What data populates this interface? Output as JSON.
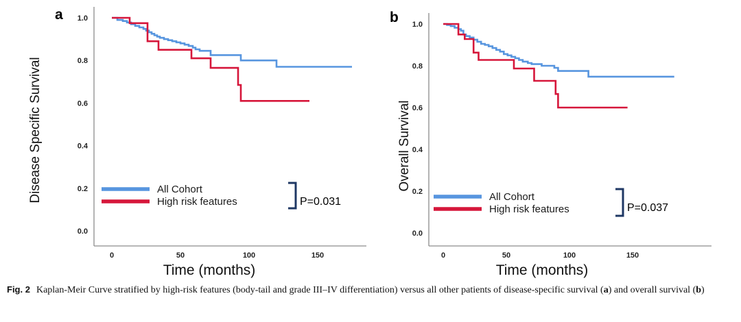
{
  "figure": {
    "caption": {
      "label": "Fig. 2",
      "text_1": "Kaplan-Meir Curve stratified by high-risk features (body-tail and grade III–IV differentiation) versus all other patients of disease-specific survival (",
      "bold_a": "a",
      "text_2": ") and overall survival (",
      "bold_b": "b",
      "text_3": ")"
    }
  },
  "colors": {
    "all_cohort": "#5795DF",
    "high_risk": "#D6163A",
    "bracket": "#1F3864",
    "axis": "#8C8C8C"
  },
  "chart_data": [
    {
      "type": "line",
      "subtype": "kaplan-meier-step",
      "panel_label": "a",
      "xlabel": "Time (months)",
      "ylabel": "Disease Specific Survival",
      "xlim": [
        0,
        185
      ],
      "ylim": [
        0.0,
        1.05
      ],
      "x_ticks": [
        0,
        50,
        100,
        150
      ],
      "y_ticks": [
        "1.0",
        "0.8",
        "0.6",
        "0.4",
        "0.2",
        "0.0"
      ],
      "grid": false,
      "legend_position": "lower-left-inside",
      "p_value": "P=0.031",
      "legend": [
        {
          "key": "all-cohort",
          "name": "All Cohort",
          "color_key": "all_cohort"
        },
        {
          "key": "high-risk",
          "name": "High risk features",
          "color_key": "high_risk"
        }
      ],
      "series": [
        {
          "key": "all-cohort",
          "name": "All Cohort",
          "color_key": "all_cohort",
          "points": [
            [
              0,
              1.0
            ],
            [
              4,
              0.99
            ],
            [
              8,
              0.985
            ],
            [
              11,
              0.978
            ],
            [
              14,
              0.97
            ],
            [
              17,
              0.962
            ],
            [
              20,
              0.955
            ],
            [
              23,
              0.948
            ],
            [
              25,
              0.94
            ],
            [
              27,
              0.932
            ],
            [
              29,
              0.925
            ],
            [
              31,
              0.918
            ],
            [
              33,
              0.912
            ],
            [
              35,
              0.906
            ],
            [
              38,
              0.9
            ],
            [
              41,
              0.895
            ],
            [
              44,
              0.89
            ],
            [
              47,
              0.885
            ],
            [
              50,
              0.88
            ],
            [
              53,
              0.874
            ],
            [
              56,
              0.868
            ],
            [
              59,
              0.86
            ],
            [
              61,
              0.852
            ],
            [
              64,
              0.845
            ],
            [
              72,
              0.825
            ],
            [
              94,
              0.8
            ],
            [
              120,
              0.77
            ],
            [
              175,
              0.77
            ]
          ]
        },
        {
          "key": "high-risk",
          "name": "High risk features",
          "color_key": "high_risk",
          "points": [
            [
              0,
              1.0
            ],
            [
              13,
              0.975
            ],
            [
              26,
              0.89
            ],
            [
              34,
              0.85
            ],
            [
              58,
              0.81
            ],
            [
              72,
              0.765
            ],
            [
              92,
              0.685
            ],
            [
              94,
              0.61
            ],
            [
              144,
              0.61
            ]
          ]
        }
      ]
    },
    {
      "type": "line",
      "subtype": "kaplan-meier-step",
      "panel_label": "b",
      "xlabel": "Time (months)",
      "ylabel": "Overall Survival",
      "xlim": [
        0,
        190
      ],
      "ylim": [
        0.0,
        1.05
      ],
      "x_ticks": [
        0,
        50,
        100,
        150
      ],
      "y_ticks": [
        "1.0",
        "0.8",
        "0.6",
        "0.4",
        "0.2",
        "0.0"
      ],
      "grid": false,
      "legend_position": "lower-left-inside",
      "p_value": "P=0.037",
      "legend": [
        {
          "key": "all-cohort",
          "name": "All Cohort",
          "color_key": "all_cohort"
        },
        {
          "key": "high-risk",
          "name": "High risk features",
          "color_key": "high_risk"
        }
      ],
      "series": [
        {
          "key": "all-cohort",
          "name": "All Cohort",
          "color_key": "all_cohort",
          "points": [
            [
              0,
              1.0
            ],
            [
              3,
              0.995
            ],
            [
              6,
              0.99
            ],
            [
              9,
              0.982
            ],
            [
              12,
              0.975
            ],
            [
              14,
              0.968
            ],
            [
              16,
              0.95
            ],
            [
              18,
              0.942
            ],
            [
              21,
              0.935
            ],
            [
              24,
              0.925
            ],
            [
              27,
              0.915
            ],
            [
              30,
              0.905
            ],
            [
              33,
              0.9
            ],
            [
              36,
              0.893
            ],
            [
              39,
              0.885
            ],
            [
              42,
              0.876
            ],
            [
              45,
              0.868
            ],
            [
              48,
              0.856
            ],
            [
              51,
              0.85
            ],
            [
              54,
              0.843
            ],
            [
              57,
              0.836
            ],
            [
              60,
              0.828
            ],
            [
              63,
              0.82
            ],
            [
              67,
              0.813
            ],
            [
              70,
              0.808
            ],
            [
              78,
              0.8
            ],
            [
              88,
              0.79
            ],
            [
              91,
              0.775
            ],
            [
              115,
              0.748
            ],
            [
              183,
              0.748
            ]
          ]
        },
        {
          "key": "high-risk",
          "name": "High risk features",
          "color_key": "high_risk",
          "points": [
            [
              0,
              1.0
            ],
            [
              12,
              0.95
            ],
            [
              17,
              0.928
            ],
            [
              24,
              0.863
            ],
            [
              28,
              0.828
            ],
            [
              56,
              0.787
            ],
            [
              72,
              0.728
            ],
            [
              89,
              0.665
            ],
            [
              91,
              0.6
            ],
            [
              146,
              0.6
            ]
          ]
        }
      ]
    }
  ]
}
